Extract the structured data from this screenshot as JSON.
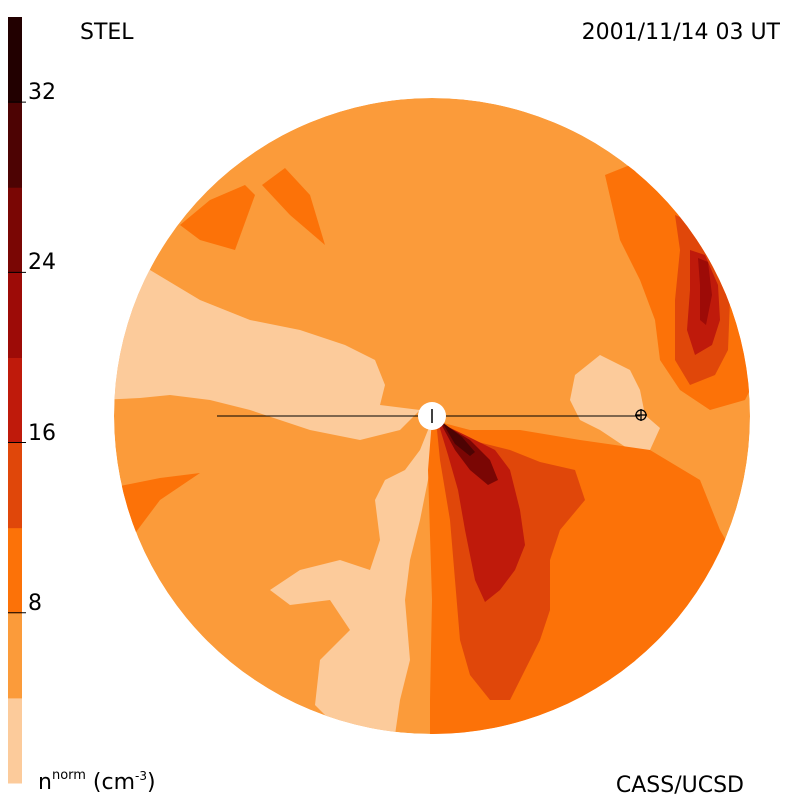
{
  "header": {
    "source": "STEL",
    "timestamp": "2001/11/14 03 UT"
  },
  "footer": {
    "credit": "CASS/UCSD",
    "unit_base": "n",
    "unit_sup": "norm",
    "unit_rest_open": " (cm",
    "unit_exp": "-3",
    "unit_rest_close": ")"
  },
  "colorbar": {
    "tick_labels": [
      "32",
      "24",
      "16",
      "8"
    ],
    "tick_values": [
      32,
      24,
      16,
      8
    ],
    "range": [
      0,
      36
    ],
    "bands": [
      {
        "from": 0,
        "to": 4,
        "color": "#fccb9b"
      },
      {
        "from": 4,
        "to": 8,
        "color": "#fb9b3a"
      },
      {
        "from": 8,
        "to": 12,
        "color": "#fc7208"
      },
      {
        "from": 12,
        "to": 16,
        "color": "#e0470a"
      },
      {
        "from": 16,
        "to": 20,
        "color": "#bf1a0b"
      },
      {
        "from": 20,
        "to": 24,
        "color": "#9d0b07"
      },
      {
        "from": 24,
        "to": 28,
        "color": "#7a0604"
      },
      {
        "from": 28,
        "to": 32,
        "color": "#4d0303"
      },
      {
        "from": 32,
        "to": 36,
        "color": "#220000"
      }
    ]
  },
  "colors": {
    "background_density": "#fb9b3a",
    "low_density": "#fccb9b",
    "enhanced_1": "#fc7208",
    "enhanced_2": "#e0470a",
    "enhanced_3": "#bf1a0b",
    "enhanced_4": "#9d0b07",
    "enhanced_5": "#4d0303"
  },
  "markers": {
    "sun_symbol": "sun-marker",
    "earth_symbol": "earth-marker"
  }
}
